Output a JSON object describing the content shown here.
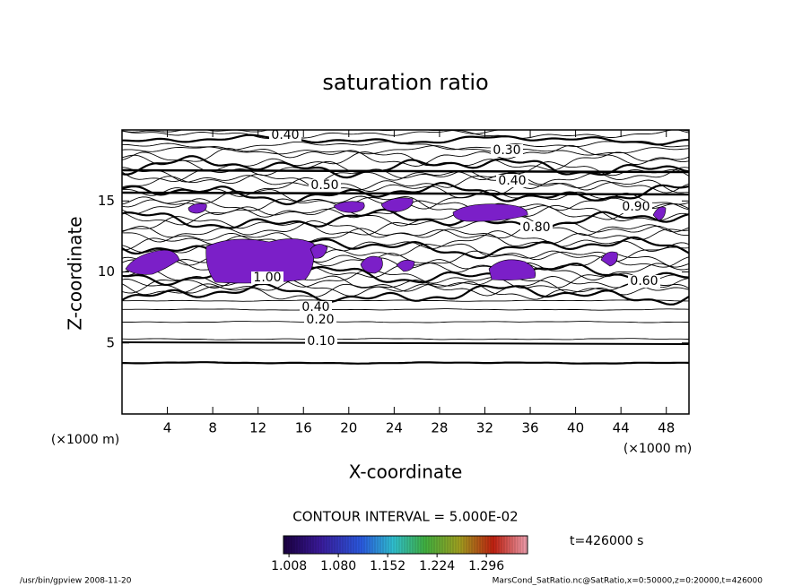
{
  "chart_data": {
    "type": "contour",
    "title": "saturation ratio",
    "x_label": "X-coordinate",
    "y_label": "Z-coordinate",
    "x_unit": "(×1000 m)",
    "y_unit": "(×1000 m)",
    "xlim": [
      0,
      50
    ],
    "ylim": [
      0,
      20
    ],
    "xticks": [
      4,
      8,
      12,
      16,
      20,
      24,
      28,
      32,
      36,
      40,
      44,
      48
    ],
    "yticks": [
      5,
      10,
      15
    ],
    "contour_labels": [
      "0.10",
      "0.20",
      "0.40",
      "0.30",
      "0.40",
      "0.50",
      "0.80",
      "0.90",
      "1.00",
      "0.60",
      "0.40"
    ],
    "contour_interval": "CONTOUR INTERVAL = 5.000E-02",
    "clim": [
      1.0,
      1.356
    ],
    "cticks": [
      {
        "value": 1.008,
        "label": "1.008"
      },
      {
        "value": 1.08,
        "label": "1.080"
      },
      {
        "value": 1.152,
        "label": "1.152"
      },
      {
        "value": 1.224,
        "label": "1.224"
      },
      {
        "value": 1.296,
        "label": "1.296"
      }
    ],
    "time_label": "t=426000 s",
    "footer_left": "/usr/bin/gpview  2008-11-20",
    "footer_right": "MarsCond_SatRatio.nc@SatRatio,x=0:50000,z=0:20000,t=426000",
    "fill_color": "#7b1fc8"
  }
}
